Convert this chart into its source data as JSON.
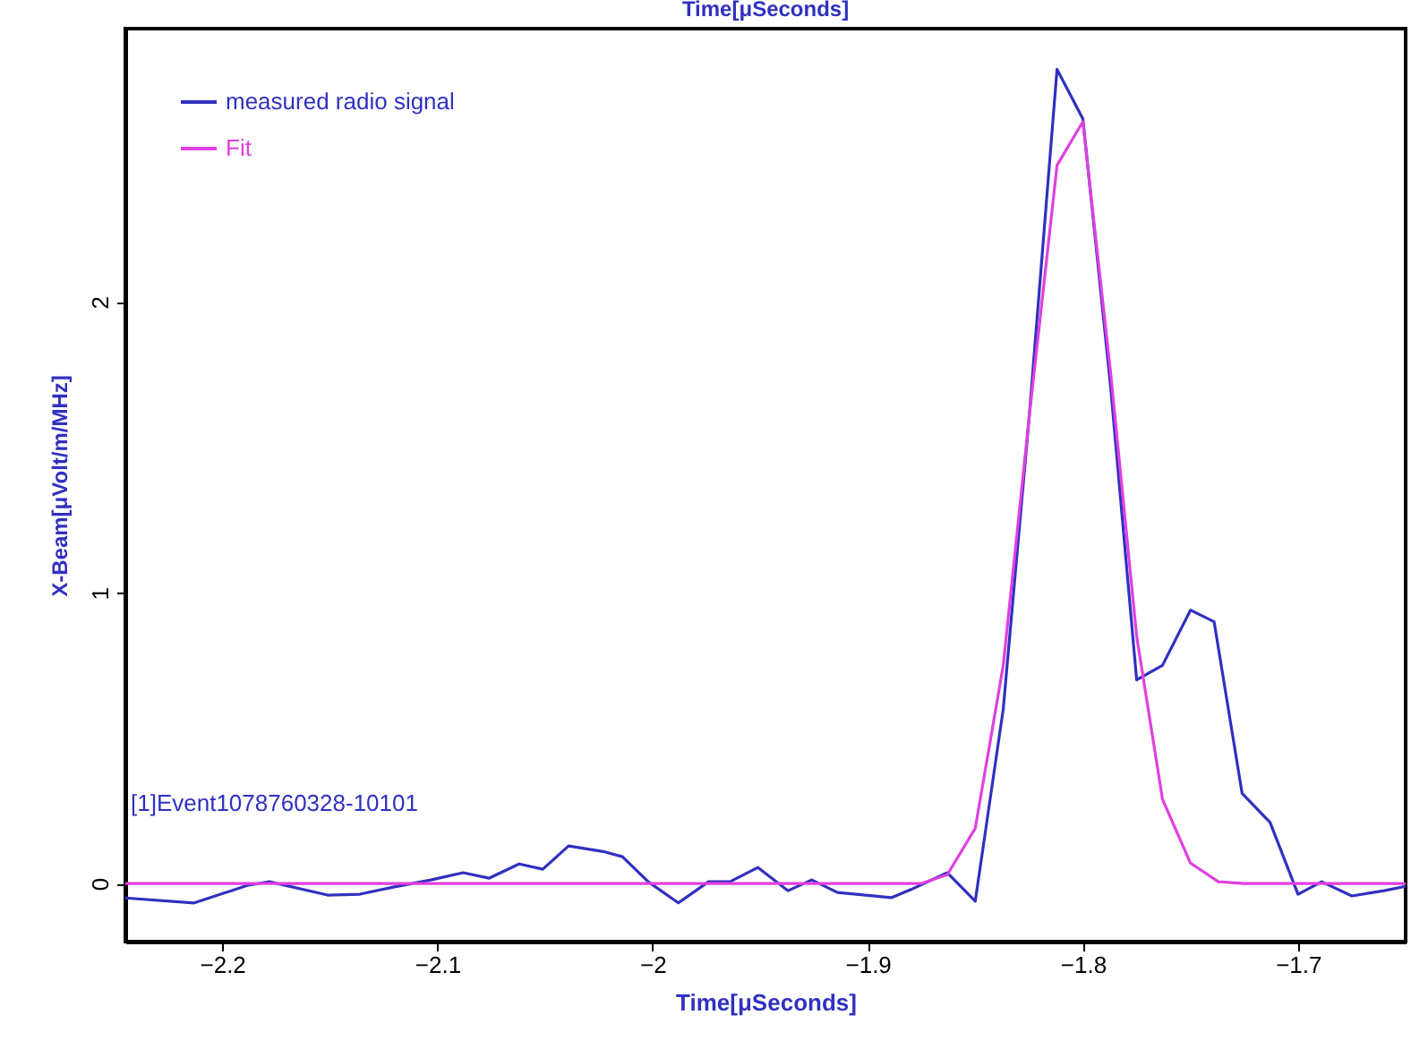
{
  "chart_data": {
    "type": "line",
    "title": "Time[μSeconds]",
    "xlabel": "Time[μSeconds]",
    "ylabel": "X-Beam[μVolt/m/MHz]",
    "annotations": [
      "[1]Event1078760328-10101"
    ],
    "xlim": [
      -2.245,
      -1.65
    ],
    "ylim": [
      -0.2,
      2.94
    ],
    "xticks": [
      -2.2,
      -2.1,
      -2,
      -1.9,
      -1.8,
      -1.7
    ],
    "yticks": [
      0,
      1,
      2
    ],
    "grid": false,
    "legend": "top left",
    "marker": "none",
    "line_style": "solid",
    "series": [
      {
        "name": "measured radio signal",
        "color": "#3030c0",
        "x": [
          -2.245,
          -2.213,
          -2.188,
          -2.178,
          -2.151,
          -2.136,
          -2.12,
          -2.103,
          -2.088,
          -2.076,
          -2.062,
          -2.051,
          -2.039,
          -2.023,
          -2.014,
          -2.002,
          -1.988,
          -1.974,
          -1.964,
          -1.951,
          -1.937,
          -1.926,
          -1.914,
          -1.889,
          -1.879,
          -1.863,
          -1.85,
          -1.837,
          -1.825,
          -1.812,
          -1.8,
          -1.787,
          -1.775,
          -1.763,
          -1.75,
          -1.739,
          -1.726,
          -1.713,
          -1.7,
          -1.689,
          -1.675,
          -1.66,
          -1.65
        ],
        "values": [
          -0.05,
          -0.067,
          -0.006,
          0.006,
          -0.04,
          -0.037,
          -0.012,
          0.012,
          0.037,
          0.018,
          0.067,
          0.049,
          0.129,
          0.11,
          0.092,
          0.006,
          -0.067,
          0.006,
          0.006,
          0.055,
          -0.025,
          0.012,
          -0.031,
          -0.049,
          -0.018,
          0.037,
          -0.061,
          0.6,
          1.6,
          2.8,
          2.63,
          1.7,
          0.7,
          0.75,
          0.94,
          0.9,
          0.31,
          0.21,
          -0.037,
          0.006,
          -0.043,
          -0.025,
          -0.01
        ]
      },
      {
        "name": "Fit",
        "color": "#e040e0",
        "x": [
          -2.245,
          -1.875,
          -1.863,
          -1.85,
          -1.837,
          -1.825,
          -1.812,
          -1.8,
          -1.787,
          -1.775,
          -1.763,
          -1.75,
          -1.737,
          -1.725,
          -1.65
        ],
        "values": [
          0,
          0,
          0.03,
          0.19,
          0.75,
          1.6,
          2.47,
          2.62,
          1.75,
          0.85,
          0.29,
          0.07,
          0.006,
          0,
          0
        ]
      }
    ]
  }
}
